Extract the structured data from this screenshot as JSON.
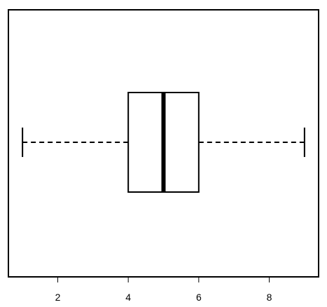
{
  "chart_data": {
    "type": "boxplot",
    "orientation": "horizontal",
    "title": "",
    "xlabel": "",
    "ylabel": "",
    "series": [
      {
        "min": 1,
        "q1": 4,
        "median": 5,
        "q3": 6,
        "max": 9
      }
    ],
    "xlim": [
      0.6,
      9.4
    ],
    "x_ticks": [
      2,
      4,
      6,
      8
    ],
    "x_tick_labels": [
      "2",
      "4",
      "6",
      "8"
    ],
    "whisker_style": "dashed",
    "grid": false,
    "legend": "none",
    "colors": {
      "stroke": "#000000",
      "box_fill": "#ffffff",
      "background": "#ffffff"
    }
  }
}
